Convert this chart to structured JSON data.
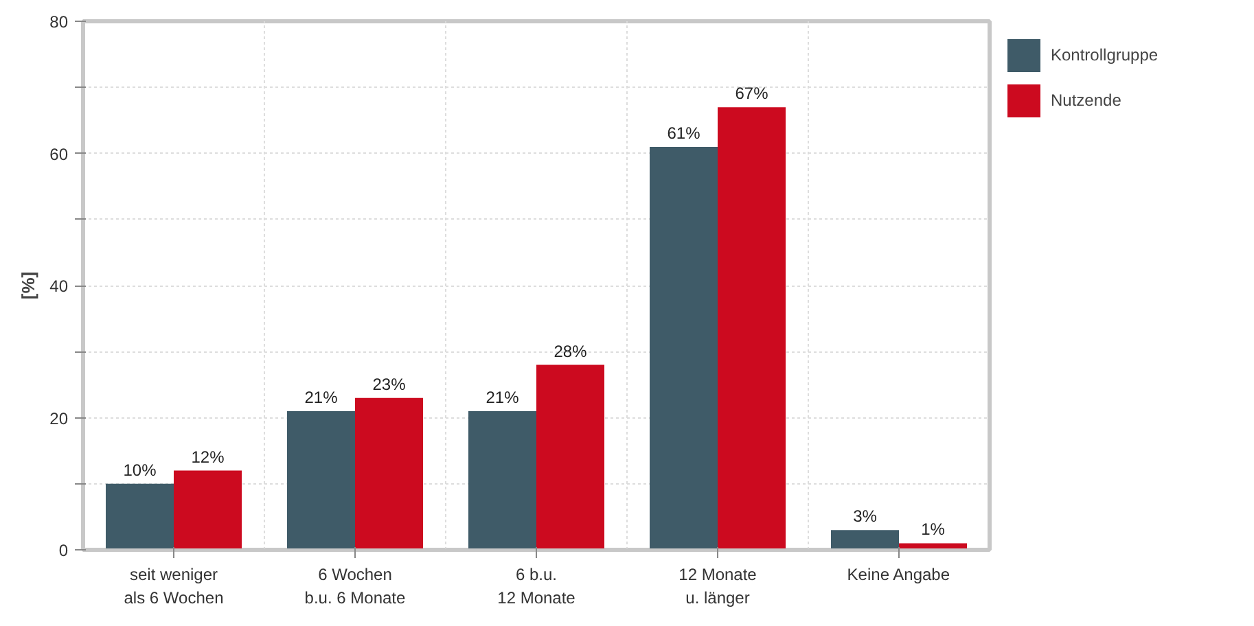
{
  "chart_data": {
    "type": "bar",
    "ylabel": "[%]",
    "categories": [
      "seit weniger\nals 6 Wochen",
      "6 Wochen\nb.u. 6 Monate",
      "6 b.u.\n12 Monate",
      "12 Monate\nu. länger",
      "Keine Angabe"
    ],
    "series": [
      {
        "name": "Kontrollgruppe",
        "color": "#3f5b68",
        "values": [
          10,
          21,
          21,
          61,
          3
        ],
        "value_labels": [
          "10%",
          "21%",
          "21%",
          "61%",
          "3%"
        ]
      },
      {
        "name": "Nutzende",
        "color": "#cc0a1f",
        "values": [
          12,
          23,
          28,
          67,
          1
        ],
        "value_labels": [
          "12%",
          "23%",
          "28%",
          "67%",
          "1%"
        ]
      }
    ],
    "ylim": [
      0,
      80
    ],
    "yticks": [
      0,
      {
        "value": 10,
        "label": null
      },
      20,
      {
        "value": 30,
        "label": null
      },
      40,
      {
        "value": 50,
        "label": null
      },
      60,
      {
        "value": 70,
        "label": null
      },
      80
    ],
    "grid": true,
    "legend": "top right"
  }
}
